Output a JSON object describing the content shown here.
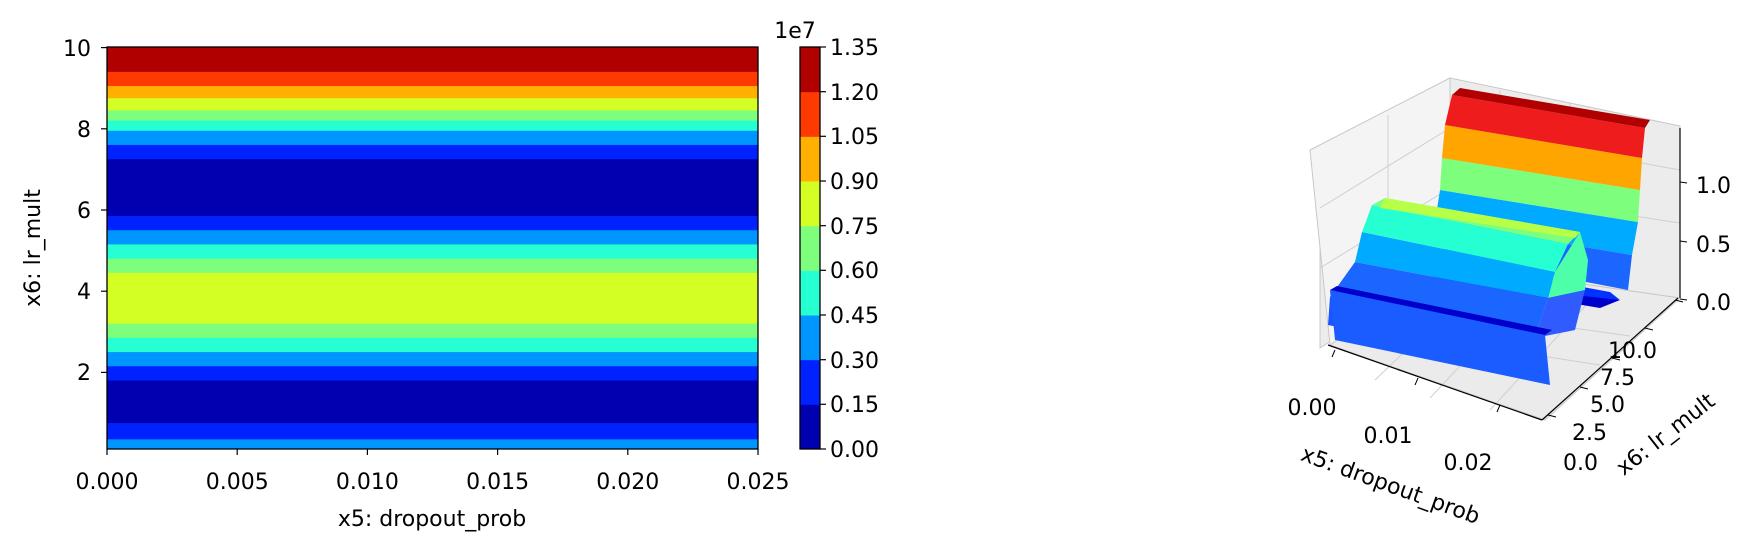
{
  "chart_data": [
    {
      "type": "heatmap",
      "subtype": "filled-contour",
      "xlabel": "x5: dropout_prob",
      "ylabel": "x6: lr_mult",
      "xlim": [
        0.0,
        0.025
      ],
      "ylim": [
        0.1,
        10
      ],
      "x_ticks": [
        "0.000",
        "0.005",
        "0.010",
        "0.015",
        "0.020",
        "0.025"
      ],
      "y_ticks": [
        "2",
        "4",
        "6",
        "8",
        "10"
      ],
      "colorbar": {
        "levels": [
          0.0,
          0.15,
          0.3,
          0.45,
          0.6,
          0.75,
          0.9,
          1.05,
          1.2,
          1.35
        ],
        "tick_labels": [
          "0.00",
          "0.15",
          "0.30",
          "0.45",
          "0.60",
          "0.75",
          "0.90",
          "1.05",
          "1.20",
          "1.35"
        ],
        "multiplier_label": "1e7",
        "colors": [
          "#0000b0",
          "#0022ff",
          "#0096ff",
          "#26ffd2",
          "#7dff7d",
          "#d3ff24",
          "#ffb000",
          "#ff3a00",
          "#b00000"
        ]
      },
      "bands": [
        {
          "y0": 0.1,
          "y1": 0.35,
          "level": 2
        },
        {
          "y0": 0.35,
          "y1": 0.75,
          "level": 1
        },
        {
          "y0": 0.75,
          "y1": 1.8,
          "level": 0
        },
        {
          "y0": 1.8,
          "y1": 2.15,
          "level": 1
        },
        {
          "y0": 2.15,
          "y1": 2.5,
          "level": 2
        },
        {
          "y0": 2.5,
          "y1": 2.85,
          "level": 3
        },
        {
          "y0": 2.85,
          "y1": 3.2,
          "level": 4
        },
        {
          "y0": 3.2,
          "y1": 4.45,
          "level": 5
        },
        {
          "y0": 4.45,
          "y1": 4.8,
          "level": 4
        },
        {
          "y0": 4.8,
          "y1": 5.15,
          "level": 3
        },
        {
          "y0": 5.15,
          "y1": 5.5,
          "level": 2
        },
        {
          "y0": 5.5,
          "y1": 5.85,
          "level": 1
        },
        {
          "y0": 5.85,
          "y1": 7.25,
          "level": 0
        },
        {
          "y0": 7.25,
          "y1": 7.6,
          "level": 1
        },
        {
          "y0": 7.6,
          "y1": 7.95,
          "level": 2
        },
        {
          "y0": 7.95,
          "y1": 8.2,
          "level": 3
        },
        {
          "y0": 8.2,
          "y1": 8.45,
          "level": 4
        },
        {
          "y0": 8.45,
          "y1": 8.75,
          "level": 5
        },
        {
          "y0": 8.75,
          "y1": 9.05,
          "level": 6
        },
        {
          "y0": 9.05,
          "y1": 9.4,
          "level": 7
        },
        {
          "y0": 9.4,
          "y1": 10.0,
          "level": 8
        }
      ]
    },
    {
      "type": "surface3d",
      "xlabel": "x5: dropout_prob",
      "ylabel": "x6: lr_mult",
      "x_ticks": [
        "0.00",
        "0.01",
        "0.02"
      ],
      "y_ticks": [
        "0.0",
        "2.5",
        "5.0",
        "7.5",
        "10.0"
      ],
      "z_ticks": [
        "0.0",
        "0.5",
        "1.0"
      ],
      "colormap": "jet"
    }
  ]
}
